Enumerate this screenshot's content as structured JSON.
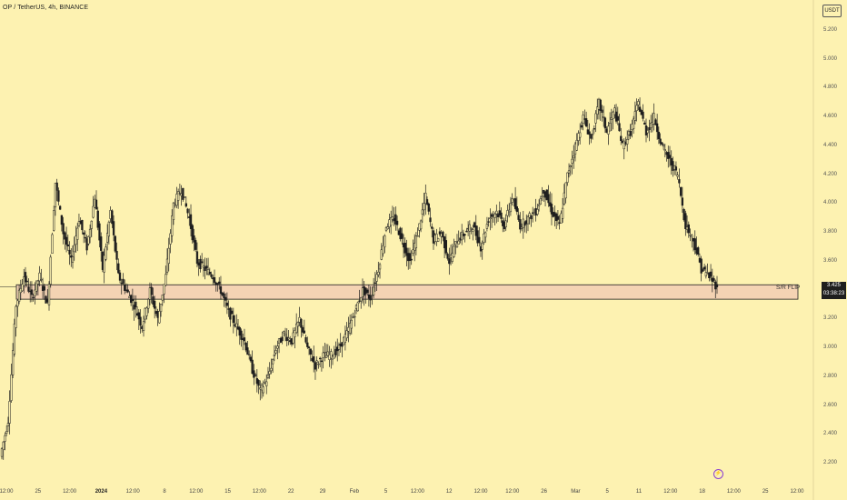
{
  "header": {
    "title": "OP / TetherUS, 4h, BINANCE",
    "currency": "USDT"
  },
  "price_tag": {
    "price": "3.425",
    "countdown": "03:38:23"
  },
  "zone": {
    "label": "S/R FLIP",
    "low": 3.34,
    "high": 3.44
  },
  "colors": {
    "background": "#fdf2b1",
    "candle": "#1e1e1e",
    "zone_fill": "#f0c8b4"
  },
  "chart_data": {
    "type": "candlestick",
    "title": "OP / TetherUS, 4h, BINANCE",
    "yaxis": {
      "ticks": [
        "5.200",
        "5.000",
        "4.800",
        "4.600",
        "4.400",
        "4.200",
        "4.000",
        "3.800",
        "3.600",
        "3.200",
        "3.000",
        "2.800",
        "2.600",
        "2.400",
        "2.200"
      ],
      "range": [
        2.15,
        5.3
      ],
      "unit": "USDT"
    },
    "xaxis": {
      "ticks": [
        {
          "label": "12:00",
          "bold": false
        },
        {
          "label": "25",
          "bold": false
        },
        {
          "label": "12:00",
          "bold": false
        },
        {
          "label": "2024",
          "bold": true
        },
        {
          "label": "12:00",
          "bold": false
        },
        {
          "label": "8",
          "bold": false
        },
        {
          "label": "12:00",
          "bold": false
        },
        {
          "label": "15",
          "bold": false
        },
        {
          "label": "12:00",
          "bold": false
        },
        {
          "label": "22",
          "bold": false
        },
        {
          "label": "29",
          "bold": false
        },
        {
          "label": "Feb",
          "bold": false
        },
        {
          "label": "5",
          "bold": false
        },
        {
          "label": "12:00",
          "bold": false
        },
        {
          "label": "12",
          "bold": false
        },
        {
          "label": "12:00",
          "bold": false
        },
        {
          "label": "12:00",
          "bold": false
        },
        {
          "label": "26",
          "bold": false
        },
        {
          "label": "Mar",
          "bold": false
        },
        {
          "label": "5",
          "bold": false
        },
        {
          "label": "11",
          "bold": false
        },
        {
          "label": "12:00",
          "bold": false
        },
        {
          "label": "18",
          "bold": false
        },
        {
          "label": "12:00",
          "bold": false
        },
        {
          "label": "25",
          "bold": false
        },
        {
          "label": "12:00",
          "bold": false
        }
      ]
    },
    "close_path": [
      {
        "date": "Dec 20 12:00",
        "close": 2.25
      },
      {
        "date": "Dec 21",
        "close": 2.5
      },
      {
        "date": "Dec 22",
        "close": 3.3
      },
      {
        "date": "Dec 23",
        "close": 3.5
      },
      {
        "date": "Dec 24",
        "close": 3.35
      },
      {
        "date": "Dec 25",
        "close": 3.5
      },
      {
        "date": "Dec 26",
        "close": 3.3
      },
      {
        "date": "Dec 27",
        "close": 4.15
      },
      {
        "date": "Dec 28",
        "close": 3.8
      },
      {
        "date": "Dec 29",
        "close": 3.6
      },
      {
        "date": "Dec 30",
        "close": 3.9
      },
      {
        "date": "Dec 31",
        "close": 3.7
      },
      {
        "date": "Jan 1",
        "close": 4.05
      },
      {
        "date": "Jan 2",
        "close": 3.55
      },
      {
        "date": "Jan 3",
        "close": 3.95
      },
      {
        "date": "Jan 4",
        "close": 3.5
      },
      {
        "date": "Jan 5",
        "close": 3.4
      },
      {
        "date": "Jan 6",
        "close": 3.3
      },
      {
        "date": "Jan 7",
        "close": 3.15
      },
      {
        "date": "Jan 8",
        "close": 3.4
      },
      {
        "date": "Jan 9",
        "close": 3.2
      },
      {
        "date": "Jan 10",
        "close": 3.5
      },
      {
        "date": "Jan 11",
        "close": 4.0
      },
      {
        "date": "Jan 12",
        "close": 4.1
      },
      {
        "date": "Jan 13",
        "close": 3.9
      },
      {
        "date": "Jan 14",
        "close": 3.6
      },
      {
        "date": "Jan 15",
        "close": 3.55
      },
      {
        "date": "Jan 16",
        "close": 3.5
      },
      {
        "date": "Jan 17",
        "close": 3.4
      },
      {
        "date": "Jan 18",
        "close": 3.25
      },
      {
        "date": "Jan 19",
        "close": 3.15
      },
      {
        "date": "Jan 20",
        "close": 3.05
      },
      {
        "date": "Jan 21",
        "close": 2.85
      },
      {
        "date": "Jan 22",
        "close": 2.7
      },
      {
        "date": "Jan 23",
        "close": 2.8
      },
      {
        "date": "Jan 24",
        "close": 3.0
      },
      {
        "date": "Jan 25",
        "close": 3.1
      },
      {
        "date": "Jan 26",
        "close": 3.05
      },
      {
        "date": "Jan 27",
        "close": 3.2
      },
      {
        "date": "Jan 28",
        "close": 3.0
      },
      {
        "date": "Jan 29",
        "close": 2.88
      },
      {
        "date": "Jan 30",
        "close": 2.95
      },
      {
        "date": "Jan 31",
        "close": 2.95
      },
      {
        "date": "Feb 1",
        "close": 3.0
      },
      {
        "date": "Feb 2",
        "close": 3.1
      },
      {
        "date": "Feb 3",
        "close": 3.25
      },
      {
        "date": "Feb 4",
        "close": 3.4
      },
      {
        "date": "Feb 5",
        "close": 3.35
      },
      {
        "date": "Feb 6",
        "close": 3.55
      },
      {
        "date": "Feb 7",
        "close": 3.85
      },
      {
        "date": "Feb 8",
        "close": 3.9
      },
      {
        "date": "Feb 9",
        "close": 3.75
      },
      {
        "date": "Feb 10",
        "close": 3.6
      },
      {
        "date": "Feb 11",
        "close": 3.8
      },
      {
        "date": "Feb 12",
        "close": 4.05
      },
      {
        "date": "Feb 13",
        "close": 3.75
      },
      {
        "date": "Feb 14",
        "close": 3.8
      },
      {
        "date": "Feb 15",
        "close": 3.6
      },
      {
        "date": "Feb 16",
        "close": 3.75
      },
      {
        "date": "Feb 17",
        "close": 3.8
      },
      {
        "date": "Feb 18",
        "close": 3.85
      },
      {
        "date": "Feb 19",
        "close": 3.7
      },
      {
        "date": "Feb 20",
        "close": 3.9
      },
      {
        "date": "Feb 21",
        "close": 3.95
      },
      {
        "date": "Feb 22",
        "close": 3.85
      },
      {
        "date": "Feb 23",
        "close": 4.05
      },
      {
        "date": "Feb 24",
        "close": 3.85
      },
      {
        "date": "Feb 25",
        "close": 3.9
      },
      {
        "date": "Feb 26",
        "close": 3.95
      },
      {
        "date": "Feb 27",
        "close": 4.1
      },
      {
        "date": "Feb 28",
        "close": 3.95
      },
      {
        "date": "Feb 29",
        "close": 3.85
      },
      {
        "date": "Mar 1",
        "close": 4.2
      },
      {
        "date": "Mar 2",
        "close": 4.4
      },
      {
        "date": "Mar 3",
        "close": 4.6
      },
      {
        "date": "Mar 4",
        "close": 4.45
      },
      {
        "date": "Mar 5",
        "close": 4.7
      },
      {
        "date": "Mar 6",
        "close": 4.5
      },
      {
        "date": "Mar 7",
        "close": 4.65
      },
      {
        "date": "Mar 8",
        "close": 4.4
      },
      {
        "date": "Mar 9",
        "close": 4.5
      },
      {
        "date": "Mar 10",
        "close": 4.7
      },
      {
        "date": "Mar 11",
        "close": 4.5
      },
      {
        "date": "Mar 12",
        "close": 4.6
      },
      {
        "date": "Mar 13",
        "close": 4.4
      },
      {
        "date": "Mar 14",
        "close": 4.3
      },
      {
        "date": "Mar 15",
        "close": 4.2
      },
      {
        "date": "Mar 16",
        "close": 3.85
      },
      {
        "date": "Mar 17",
        "close": 3.75
      },
      {
        "date": "Mar 18",
        "close": 3.55
      },
      {
        "date": "Mar 18 12:00",
        "close": 3.5
      },
      {
        "date": "Mar 19",
        "close": 3.425
      }
    ],
    "last_price": 3.425
  }
}
